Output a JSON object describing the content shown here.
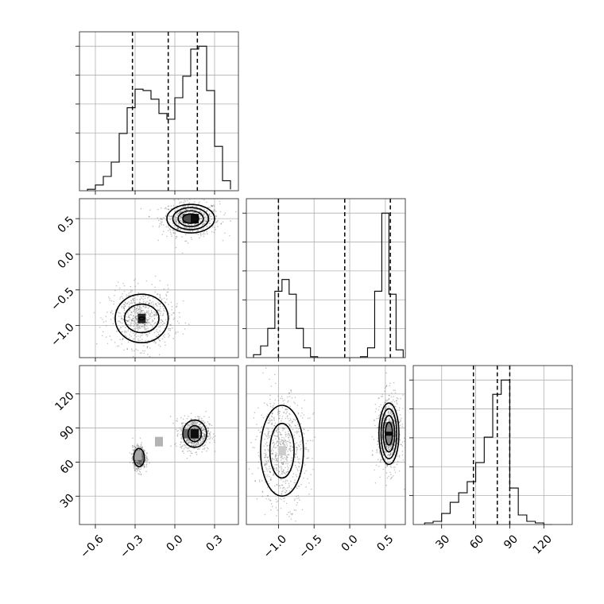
{
  "chart_data": {
    "type": "corner",
    "parameters": [
      "p0",
      "p1",
      "p2"
    ],
    "ranges": {
      "p0": [
        -0.72,
        0.48
      ],
      "p1": [
        -1.45,
        0.78
      ],
      "p2": [
        5,
        145
      ]
    },
    "ticks": {
      "p0": [
        -0.6,
        -0.3,
        0.0,
        0.3
      ],
      "p1": [
        -1.0,
        -0.5,
        0.0,
        0.5
      ],
      "p2": [
        30,
        60,
        90,
        120
      ]
    },
    "tick_labels": {
      "p0": [
        "−0.6",
        "−0.3",
        "0.0",
        "0.3"
      ],
      "p1": [
        "−1.0",
        "−0.5",
        "0.0",
        "0.5"
      ],
      "p2": [
        "30",
        "60",
        "90",
        "120"
      ]
    },
    "grid": true,
    "marginals": [
      {
        "param": "p0",
        "bin_edges": [
          -0.66,
          -0.6,
          -0.54,
          -0.48,
          -0.42,
          -0.36,
          -0.3,
          -0.24,
          -0.18,
          -0.12,
          -0.06,
          0.0,
          0.06,
          0.12,
          0.18,
          0.24,
          0.3,
          0.36,
          0.42
        ],
        "counts": [
          1,
          4,
          10,
          20,
          40,
          58,
          71,
          70,
          64,
          54,
          50,
          65,
          80,
          99,
          101,
          70,
          31,
          7,
          1
        ],
        "quantiles": [
          -0.32,
          -0.05,
          0.17
        ]
      },
      {
        "param": "p1",
        "bin_edges": [
          -1.35,
          -1.25,
          -1.15,
          -1.05,
          -0.95,
          -0.85,
          -0.75,
          -0.65,
          -0.55,
          -0.45,
          -0.35,
          -0.25,
          -0.15,
          -0.05,
          0.05,
          0.15,
          0.25,
          0.35,
          0.45,
          0.55,
          0.65,
          0.75
        ],
        "counts": [
          3,
          12,
          30,
          68,
          80,
          65,
          30,
          10,
          1,
          0,
          0,
          0,
          0,
          0,
          0,
          1,
          10,
          68,
          148,
          65,
          8
        ],
        "quantiles": [
          -1.0,
          -0.07,
          0.57
        ]
      },
      {
        "param": "p2",
        "bin_edges": [
          15,
          22.5,
          30,
          37.5,
          45,
          52.5,
          60,
          67.5,
          75,
          82.5,
          90,
          97.5,
          105,
          112.5,
          120,
          127.5
        ],
        "counts": [
          1,
          2,
          7,
          14,
          20,
          27,
          39,
          55,
          82,
          91,
          23,
          6,
          2,
          1,
          0
        ],
        "quantiles": [
          58,
          79,
          90
        ]
      }
    ],
    "joint": [
      {
        "x": "p0",
        "y": "p1",
        "clusters": [
          {
            "center": [
              0.15,
              0.5
            ],
            "pixels": [
              [
                0.15,
                0.5,
                0.95
              ],
              [
                0.09,
                0.5,
                0.7
              ]
            ]
          },
          {
            "center": [
              -0.25,
              -0.9
            ],
            "pixels": [
              [
                -0.25,
                -0.9,
                0.85
              ]
            ]
          }
        ],
        "contours": [
          {
            "center": [
              0.12,
              0.5
            ],
            "radii": [
              [
                0.18,
                0.2
              ],
              [
                0.135,
                0.155
              ],
              [
                0.095,
                0.11
              ],
              [
                0.06,
                0.065
              ]
            ]
          },
          {
            "center": [
              -0.25,
              -0.9
            ],
            "radii": [
              [
                0.2,
                0.34
              ],
              [
                0.13,
                0.2
              ],
              [
                0.02,
                0.02
              ]
            ]
          }
        ]
      },
      {
        "x": "p0",
        "y": "p2",
        "clusters": [
          {
            "center": [
              0.15,
              85
            ],
            "pixels": [
              [
                0.15,
                85,
                0.95
              ],
              [
                0.09,
                85,
                0.6
              ],
              [
                -0.12,
                78,
                0.3
              ],
              [
                -0.28,
                66,
                0.35
              ]
            ]
          }
        ],
        "contours": [
          {
            "center": [
              0.15,
              85
            ],
            "radii": [
              [
                0.09,
                12
              ],
              [
                0.05,
                7
              ]
            ]
          },
          {
            "center": [
              -0.27,
              64
            ],
            "radii": [
              [
                0.04,
                8
              ]
            ]
          }
        ]
      },
      {
        "x": "p1",
        "y": "p2",
        "clusters": [
          {
            "center": [
              0.55,
              85
            ],
            "pixels": [
              [
                0.55,
                85,
                0.95
              ],
              [
                0.55,
                79,
                0.5
              ],
              [
                0.55,
                91,
                0.5
              ]
            ]
          },
          {
            "center": [
              -0.95,
              70
            ],
            "pixels": [
              [
                -0.95,
                70,
                0.2
              ]
            ]
          }
        ],
        "contours": [
          {
            "center": [
              0.55,
              85
            ],
            "radii": [
              [
                0.14,
                27
              ],
              [
                0.11,
                22
              ],
              [
                0.08,
                16
              ],
              [
                0.05,
                10
              ]
            ]
          },
          {
            "center": [
              -0.95,
              70
            ],
            "radii": [
              [
                0.3,
                40
              ],
              [
                0.17,
                24
              ]
            ]
          }
        ]
      }
    ]
  }
}
